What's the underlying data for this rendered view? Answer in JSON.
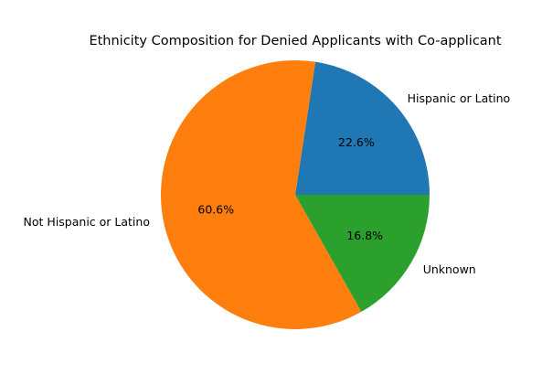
{
  "chart_data": {
    "type": "pie",
    "title": "Ethnicity Composition for Denied Applicants with Co-applicant",
    "slices": [
      {
        "label": "Hispanic or Latino",
        "value": 22.6,
        "pct_label": "22.6%",
        "color": "#1f77b4"
      },
      {
        "label": "Not Hispanic or Latino",
        "value": 60.6,
        "pct_label": "60.6%",
        "color": "#ff7f0e"
      },
      {
        "label": "Unknown",
        "value": 16.8,
        "pct_label": "16.8%",
        "color": "#2ca02c"
      }
    ],
    "start_angle": "0 degrees (3 o'clock)",
    "direction": "counterclockwise",
    "legend": "none"
  }
}
